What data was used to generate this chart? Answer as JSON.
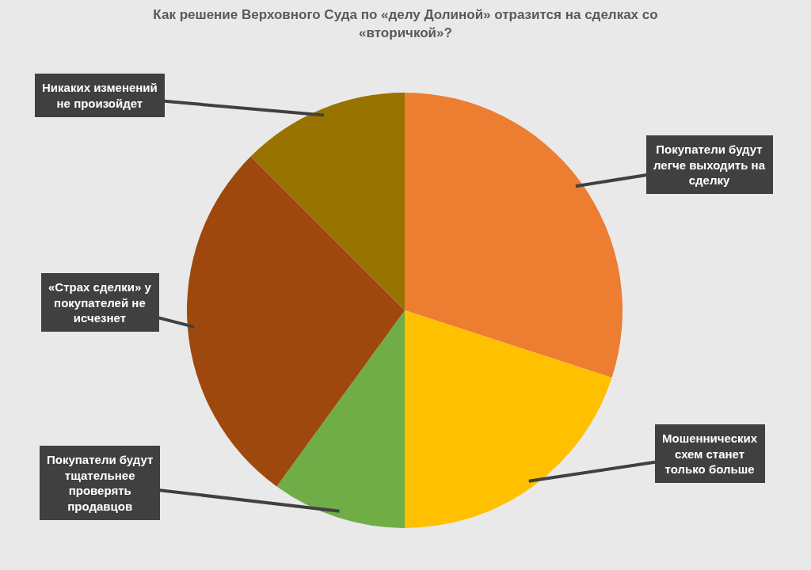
{
  "chart_data": {
    "type": "pie",
    "title": "Как решение Верховного Суда по «делу Долиной» отразится на сделках со «вторичкой»?",
    "categories": [
      "Покупатели будут легче выходить на сделку",
      "Мошеннических схем станет только больше",
      "Покупатели будут тщательнее проверять продавцов",
      "«Страх сделки» у покупателей не исчезнет",
      "Никаких изменений не произойдет"
    ],
    "values": [
      30,
      20,
      10,
      27.5,
      12.5
    ],
    "colors": [
      "#ed7d31",
      "#ffc000",
      "#70ad47",
      "#9e480e",
      "#997300"
    ]
  }
}
